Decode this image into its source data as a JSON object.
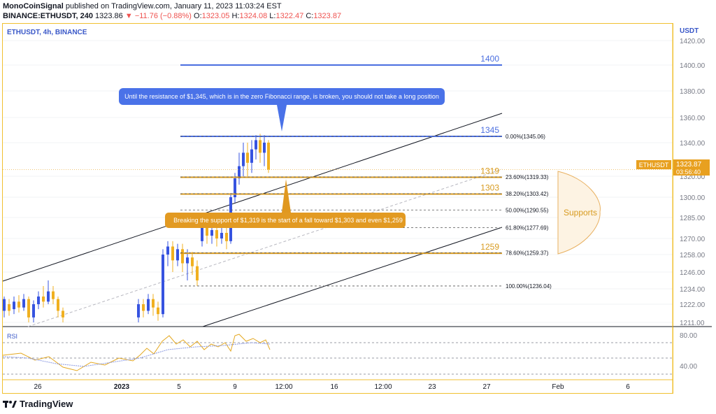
{
  "header": {
    "author": "MonoCoinSignal",
    "published_text": "published on TradingView.com, January 11, 2023 11:03:24 EST",
    "symbol_line": "BINANCE:ETHUSDT, 240",
    "last": "1323.86",
    "change": "−11.76 (−0.88%)",
    "open_label": "O:",
    "open": "1323.05",
    "high_label": "H:",
    "high": "1324.08",
    "low_label": "L:",
    "low": "1322.47",
    "close_label": "C:",
    "close": "1323.87"
  },
  "legend": {
    "symbol": "ETHUSDT, 4h, BINANCE"
  },
  "axis": {
    "currency": "USDT"
  },
  "price_tag": {
    "label": "ETHUSDT",
    "price": "1323.87",
    "countdown": "03:56:40"
  },
  "annotations": {
    "callout_top": "Until the resistance of $1,345, which is in the zero Fibonacci range, is broken, you should not take a long position",
    "callout_bottom": "Breaking the support of $1,319 is the start of a fall toward $1,303 and even $1,259",
    "supports": "Supports"
  },
  "rsi": {
    "label": "RSI",
    "ticks": [
      "80.00",
      "40.00"
    ]
  },
  "footer": {
    "brand": "TradingView"
  },
  "colors": {
    "blue": "#4a6ee0",
    "orange": "#d89b20",
    "up": "#3653e0",
    "down": "#f0b020",
    "rsi": "#e4a820",
    "rsi_ma": "#8a98e0"
  },
  "chart_data": {
    "type": "candlestick",
    "y_ticks": [
      1211,
      1222,
      1234,
      1246,
      1258,
      1270,
      1285,
      1300,
      1320,
      1340,
      1360,
      1380,
      1400,
      1420
    ],
    "x_ticks": [
      "26",
      "2023",
      "5",
      "9",
      "12:00",
      "16",
      "12:00",
      "23",
      "27",
      "Feb",
      "6"
    ],
    "horizontal_levels": [
      {
        "label": "1400",
        "value": 1400,
        "color": "blue"
      },
      {
        "label": "1345",
        "value": 1345,
        "color": "blue"
      },
      {
        "label": "1319",
        "value": 1319,
        "color": "orange"
      },
      {
        "label": "1303",
        "value": 1303,
        "color": "orange"
      },
      {
        "label": "1259",
        "value": 1259,
        "color": "orange"
      }
    ],
    "fibonacci": [
      {
        "label": "0.00%(1345.06)",
        "value": 1345.06
      },
      {
        "label": "23.60%(1319.33)",
        "value": 1319.33
      },
      {
        "label": "38.20%(1303.42)",
        "value": 1303.42
      },
      {
        "label": "50.00%(1290.55)",
        "value": 1290.55
      },
      {
        "label": "61.80%(1277.69)",
        "value": 1277.69
      },
      {
        "label": "78.60%(1259.37)",
        "value": 1259.37
      },
      {
        "label": "100.00%(1236.04)",
        "value": 1236.04
      }
    ],
    "last_price": 1323.87
  }
}
